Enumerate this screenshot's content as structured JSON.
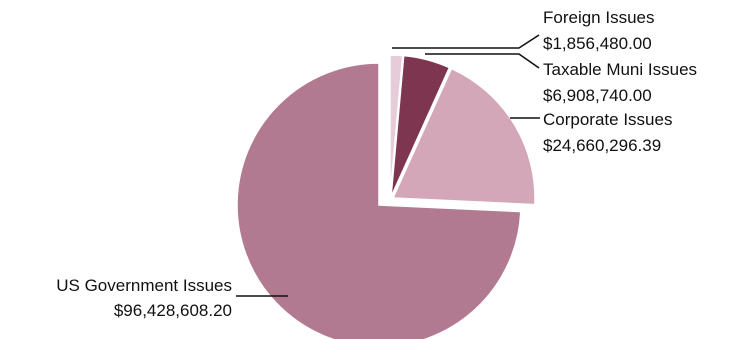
{
  "chart_data": {
    "type": "pie",
    "slices": [
      {
        "label": "US Government Issues",
        "value_text": "$96,428,608.20",
        "value": 96428608.2,
        "color": "#b27a90"
      },
      {
        "label": "Corporate Issues",
        "value_text": "$24,660,296.39",
        "value": 24660296.39,
        "color": "#d3a6b8"
      },
      {
        "label": "Taxable Muni Issues",
        "value_text": "$6,908,740.00",
        "value": 6908740.0,
        "color": "#7d3550"
      },
      {
        "label": "Foreign Issues",
        "value_text": "$1,856,480.00",
        "value": 1856480.0,
        "color": "#e6ccd8"
      }
    ],
    "exploded": true,
    "legend": "none",
    "data_labels": "outside with leader lines"
  }
}
